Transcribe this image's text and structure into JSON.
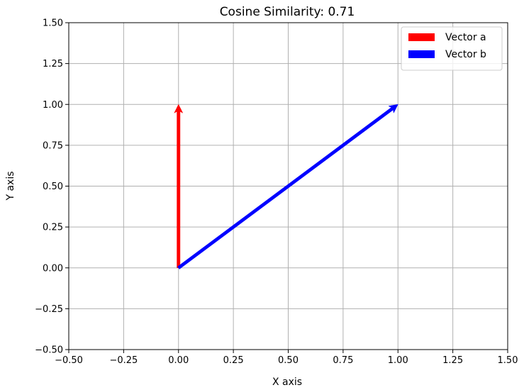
{
  "chart_data": {
    "type": "quiver",
    "title": "Cosine Similarity: 0.71",
    "xlabel": "X axis",
    "ylabel": "Y axis",
    "xlim": [
      -0.5,
      1.5
    ],
    "ylim": [
      -0.5,
      1.5
    ],
    "xticks": [
      "−0.50",
      "−0.25",
      "0.00",
      "0.25",
      "0.50",
      "0.75",
      "1.00",
      "1.25",
      "1.50"
    ],
    "yticks": [
      "−0.50",
      "−0.25",
      "0.00",
      "0.25",
      "0.50",
      "0.75",
      "1.00",
      "1.25",
      "1.50"
    ],
    "xtick_values": [
      -0.5,
      -0.25,
      0,
      0.25,
      0.5,
      0.75,
      1.0,
      1.25,
      1.5
    ],
    "ytick_values": [
      -0.5,
      -0.25,
      0,
      0.25,
      0.5,
      0.75,
      1.0,
      1.25,
      1.5
    ],
    "grid": true,
    "legend_position": "top-right",
    "series": [
      {
        "name": "Vector a",
        "color": "#ff0000",
        "origin": [
          0,
          0
        ],
        "vector": [
          0,
          1
        ]
      },
      {
        "name": "Vector b",
        "color": "#0000ff",
        "origin": [
          0,
          0
        ],
        "vector": [
          1,
          1
        ]
      }
    ]
  }
}
